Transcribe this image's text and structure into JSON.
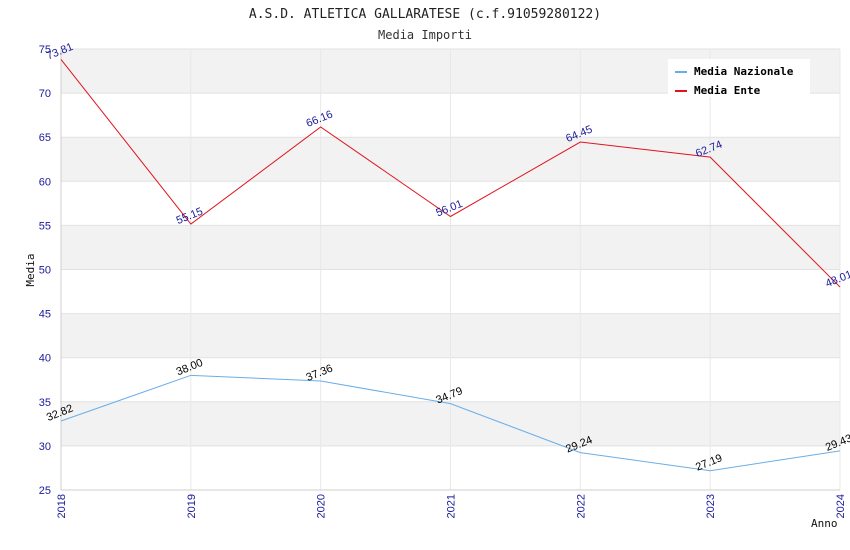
{
  "chart_data": {
    "type": "line",
    "title": "A.S.D. ATLETICA GALLARATESE (c.f.91059280122)",
    "subtitle": "Media Importi",
    "xlabel": "Anno",
    "ylabel": "Media",
    "categories": [
      "2018",
      "2019",
      "2020",
      "2021",
      "2022",
      "2023",
      "2024"
    ],
    "ylim": [
      25,
      75
    ],
    "yticks": [
      25,
      30,
      35,
      40,
      45,
      50,
      55,
      60,
      65,
      70,
      75
    ],
    "grid": true,
    "legend_position": "top-right",
    "series": [
      {
        "name": "Media Nazionale",
        "color": "#6aaee8",
        "label_color": "#000000",
        "values": [
          32.82,
          38.0,
          37.36,
          34.79,
          29.24,
          27.19,
          29.43
        ],
        "labels": [
          "32.82",
          "38.00",
          "37.36",
          "34.79",
          "29.24",
          "27.19",
          "29.43"
        ]
      },
      {
        "name": "Media Ente",
        "color": "#e0141e",
        "label_color": "#1a1a9a",
        "values": [
          73.81,
          55.15,
          66.16,
          56.01,
          64.45,
          62.74,
          48.01
        ],
        "labels": [
          "73.81",
          "55.15",
          "66.16",
          "56.01",
          "64.45",
          "62.74",
          "48.01"
        ]
      }
    ]
  }
}
